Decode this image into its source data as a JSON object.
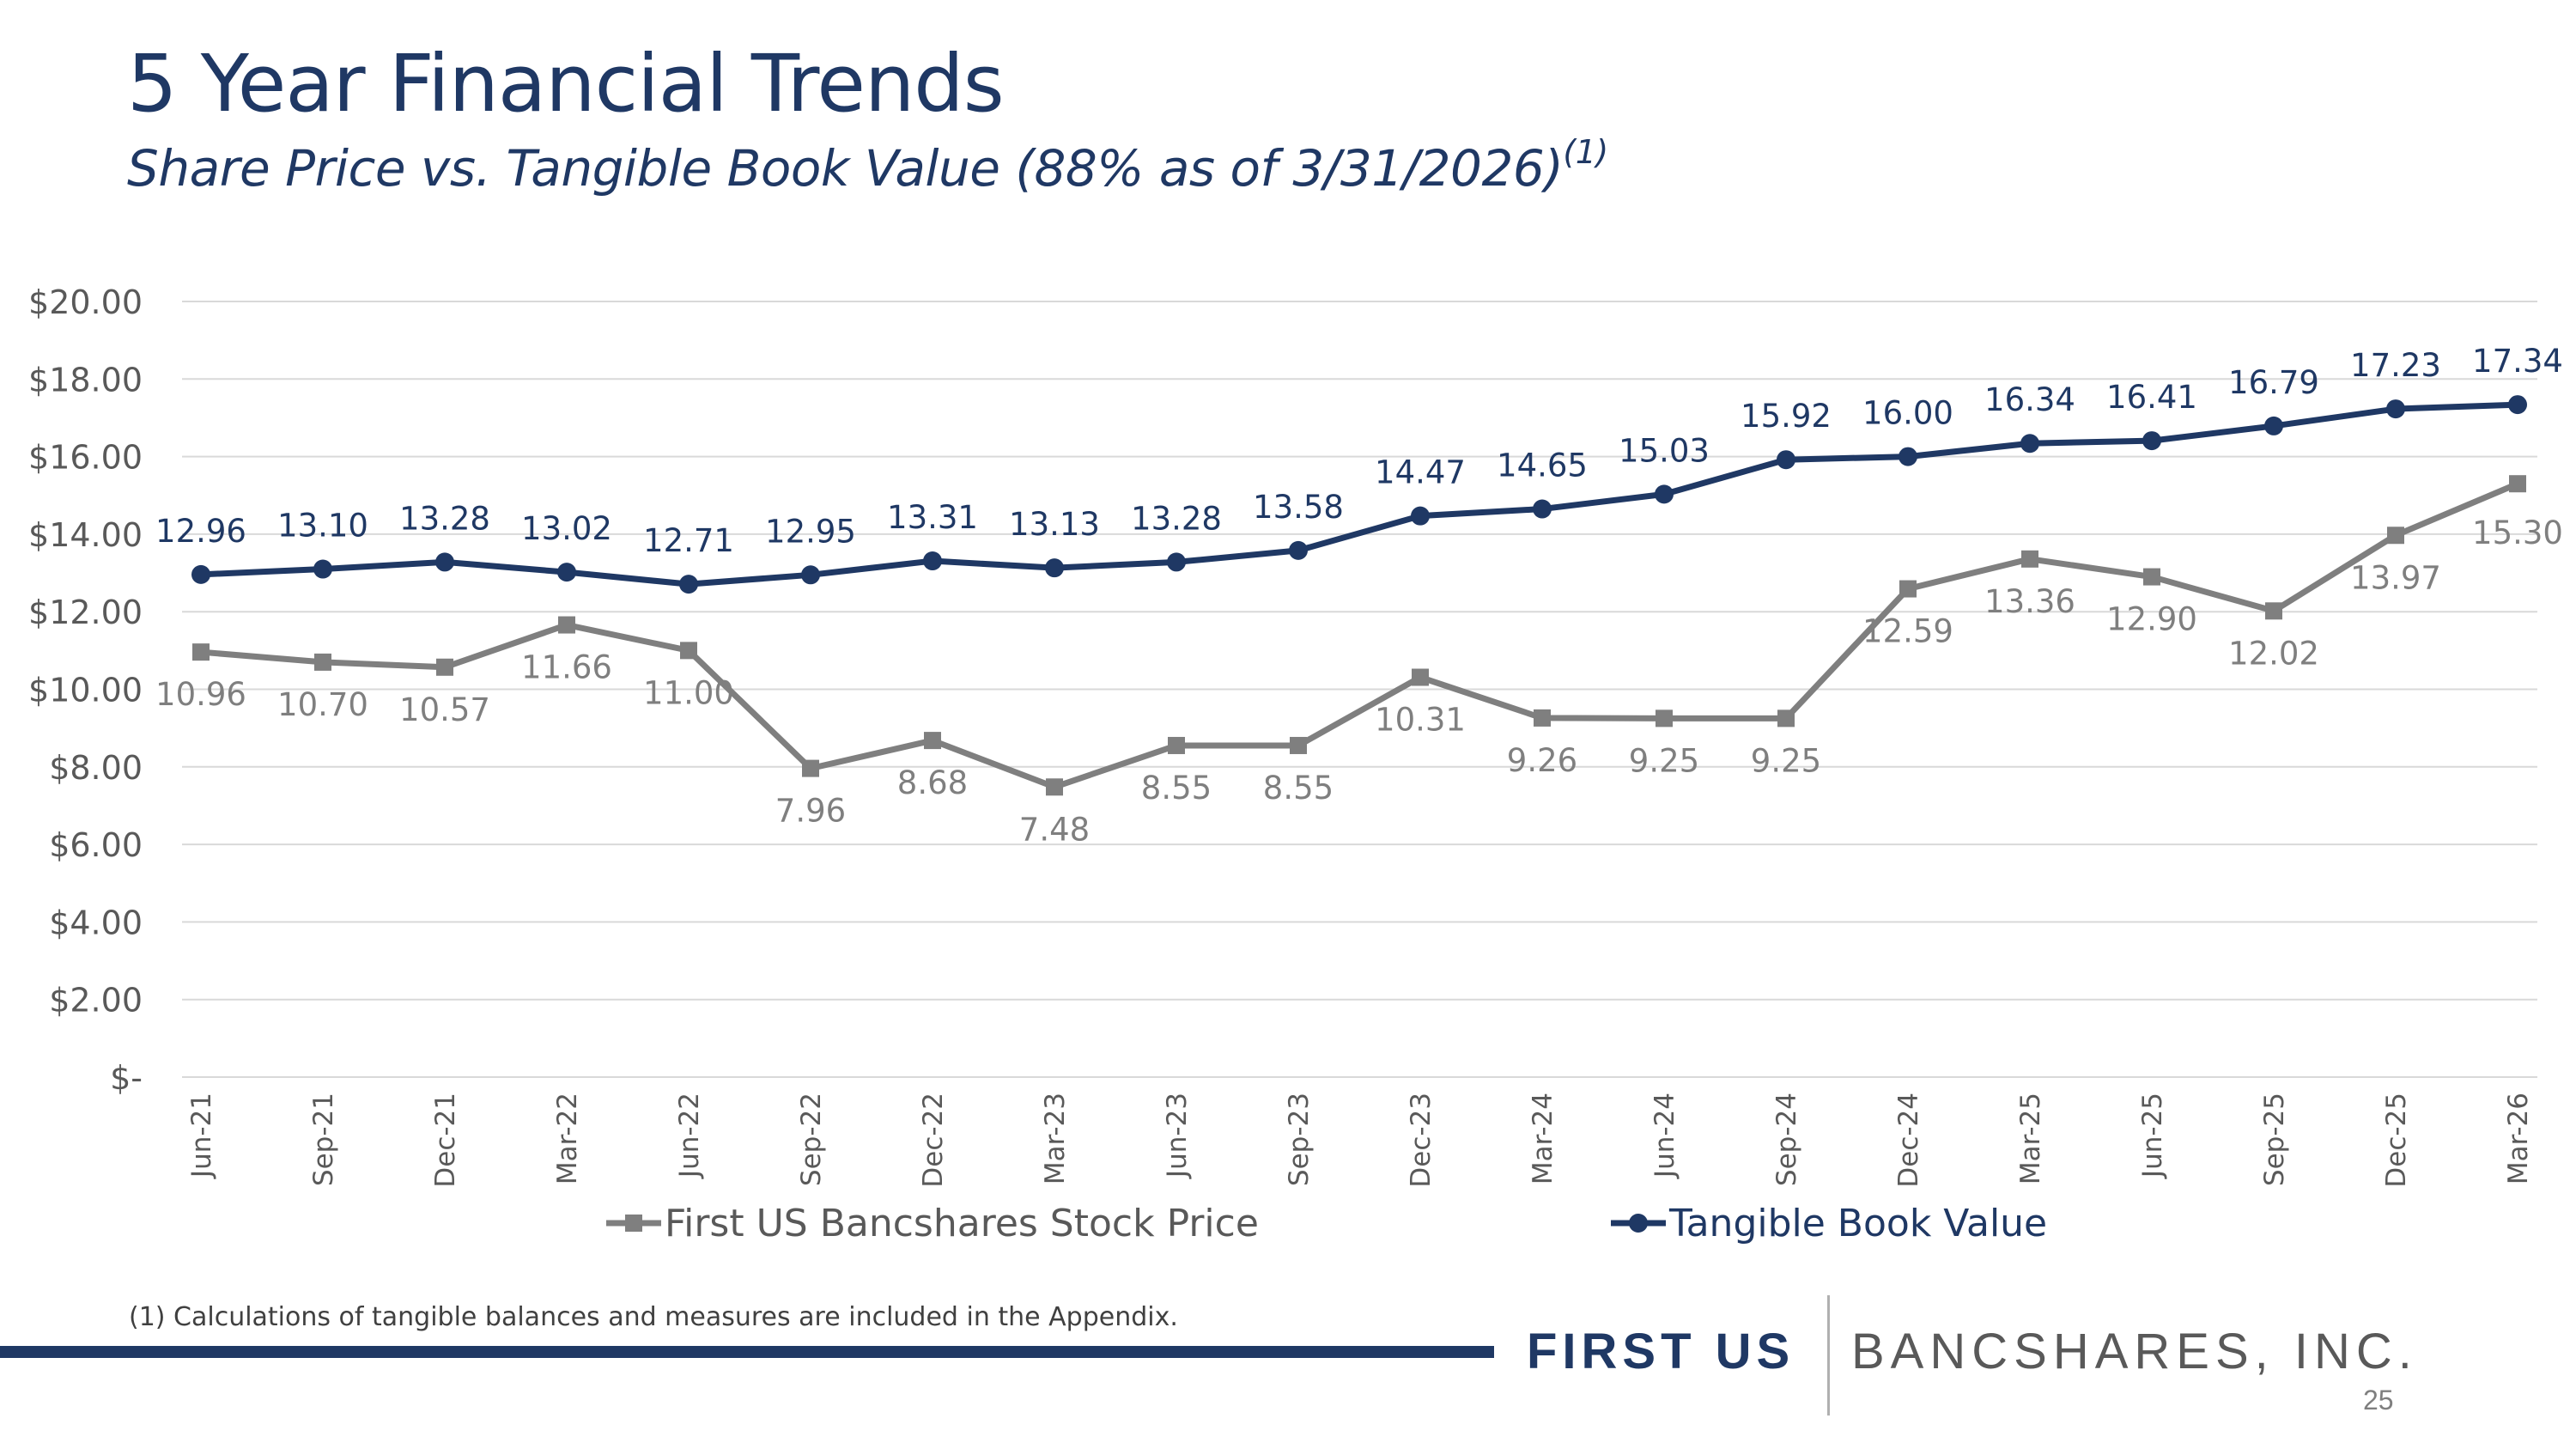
{
  "slide": {
    "title": "5 Year Financial Trends",
    "subtitle": "Share Price vs. Tangible Book Value (88% as of 3/31/2026)",
    "subtitle_sup": "(1)",
    "footnote": "(1) Calculations of tangible balances and measures are included in the Appendix.",
    "brand_strong": "FIRST US",
    "brand_light": "BANCSHARES, INC.",
    "page_number": "25"
  },
  "chart_data": {
    "type": "line",
    "categories": [
      "Jun-21",
      "Sep-21",
      "Dec-21",
      "Mar-22",
      "Jun-22",
      "Sep-22",
      "Dec-22",
      "Mar-23",
      "Jun-23",
      "Sep-23",
      "Dec-23",
      "Mar-24",
      "Jun-24",
      "Sep-24",
      "Dec-24",
      "Mar-25",
      "Jun-25",
      "Sep-25",
      "Dec-25",
      "Mar-26"
    ],
    "y_ticks": [
      "$-",
      "$2.00",
      "$4.00",
      "$6.00",
      "$8.00",
      "$10.00",
      "$12.00",
      "$14.00",
      "$16.00",
      "$18.00",
      "$20.00"
    ],
    "ylim": [
      0,
      20
    ],
    "grid": true,
    "legend_position": "bottom",
    "series": [
      {
        "name": "First US Bancshares Stock Price",
        "color": "#7f7f7f",
        "marker": "square",
        "values": [
          10.96,
          10.7,
          10.57,
          11.66,
          11.0,
          7.96,
          8.68,
          7.48,
          8.55,
          8.55,
          10.31,
          9.26,
          9.25,
          9.25,
          12.59,
          13.36,
          12.9,
          12.02,
          13.97,
          15.3
        ],
        "labels": [
          "10.96",
          "10.70",
          "10.57",
          "11.66",
          "11.00",
          "7.96",
          "8.68",
          "7.48",
          "8.55",
          "8.55",
          "10.31",
          "9.26",
          "9.25",
          "9.25",
          "12.59",
          "13.36",
          "12.90",
          "12.02",
          "13.97",
          "15.30"
        ]
      },
      {
        "name": "Tangible Book Value",
        "color": "#1f3864",
        "marker": "circle",
        "values": [
          12.96,
          13.1,
          13.28,
          13.02,
          12.71,
          12.95,
          13.31,
          13.13,
          13.28,
          13.58,
          14.47,
          14.65,
          15.03,
          15.92,
          16.0,
          16.34,
          16.41,
          16.79,
          17.23,
          17.34
        ],
        "labels": [
          "12.96",
          "13.10",
          "13.28",
          "13.02",
          "12.71",
          "12.95",
          "13.31",
          "13.13",
          "13.28",
          "13.58",
          "14.47",
          "14.65",
          "15.03",
          "15.92",
          "16.00",
          "16.34",
          "16.41",
          "16.79",
          "17.23",
          "17.34"
        ]
      }
    ]
  }
}
